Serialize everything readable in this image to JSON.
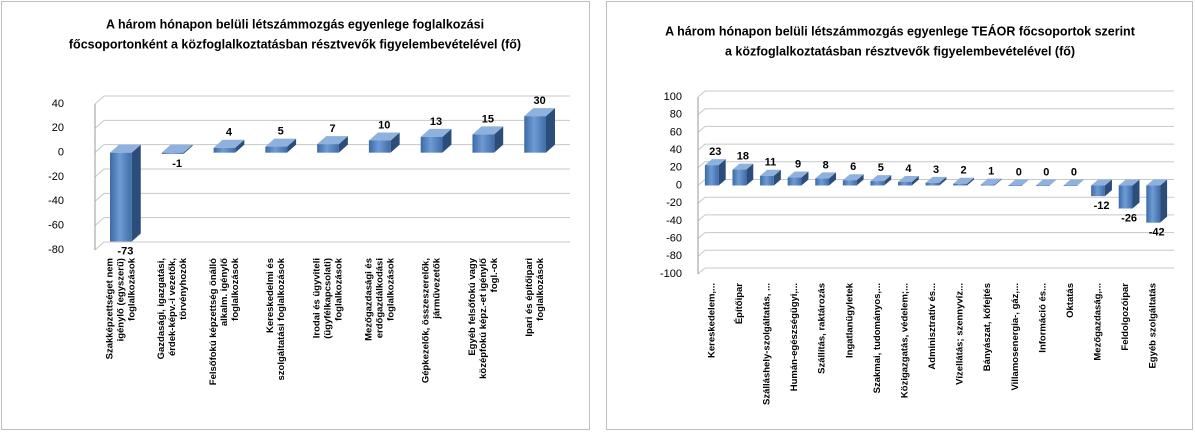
{
  "chart_data": [
    {
      "type": "bar",
      "title": [
        "A három hónapon belüli létszámmozgás egyenlege foglalkozási",
        "főcsoportonként a közfoglalkoztatásban résztvevők figyelembevételével (fő)"
      ],
      "categories": [
        [
          "Szakképzettséget nem",
          "igénylő (egyszerű)",
          "foglalkozások"
        ],
        [
          "Gazdasági, igazgatási,",
          "érdek-képv.-i vezetők,",
          "törvényhozók"
        ],
        [
          "Felsőfokú képzettség önálló",
          "alkalm. igénylő",
          "foglalkozások"
        ],
        [
          "Kereskedelmi és",
          "szolgáltatási foglalkozások"
        ],
        [
          "Irodai és ügyviteli",
          "(ügyfélkapcsolati)",
          "foglalkozások"
        ],
        [
          "Mezőgazdasági és",
          "erdőgazdálkodási",
          "foglalkozások"
        ],
        [
          "Gépkezelők, összeszerelők,",
          "járművezetők"
        ],
        [
          "Egyéb felsőfokú vagy",
          "középfokú képz.-et igénylő",
          "fogl.-ok"
        ],
        [
          "Ipari és építőipari",
          "foglalkozások"
        ]
      ],
      "values": [
        -73,
        -1,
        4,
        5,
        7,
        10,
        13,
        15,
        30
      ],
      "color": "#4f81bd",
      "negative_label_color": "#ff0000",
      "ylim": [
        -80,
        40
      ],
      "yticks": [
        -80,
        -60,
        -40,
        -20,
        0,
        20,
        40
      ],
      "grid": true
    },
    {
      "type": "bar",
      "title": [
        "A három hónapon belüli létszámmozgás egyenlege TEÁOR főcsoportok szerint",
        "a közfoglalkoztatásban résztvevők figyelembevételével (fő)"
      ],
      "categories": [
        "Kereskedelem,...",
        "Építőipar",
        "Szálláshely-szolgáltatás, ...",
        "Humán-egészségügyi,...",
        "Szállítás, raktározás",
        "Ingatlanügyletek",
        "Szakmai, tudományos,...",
        "Közigazgatás, védelem;...",
        "Adminisztratív és...",
        "Vízellátás; szennyvíz...",
        "Bányászat, kőfejtés",
        "Villamosenergia-, gáz,...",
        "Információ és...",
        "Oktatás",
        "Mezőgazdaság,...",
        "Feldolgozóipar",
        "Egyéb szolgáltatás"
      ],
      "values": [
        23,
        18,
        11,
        9,
        8,
        6,
        5,
        4,
        3,
        2,
        1,
        0,
        0,
        0,
        -12,
        -26,
        -42
      ],
      "color": "#4f81bd",
      "negative_label_color": "#ff0000",
      "ylim": [
        -100,
        100
      ],
      "yticks": [
        -100,
        -80,
        -60,
        -40,
        -20,
        0,
        20,
        40,
        60,
        80,
        100
      ],
      "grid": true
    }
  ]
}
